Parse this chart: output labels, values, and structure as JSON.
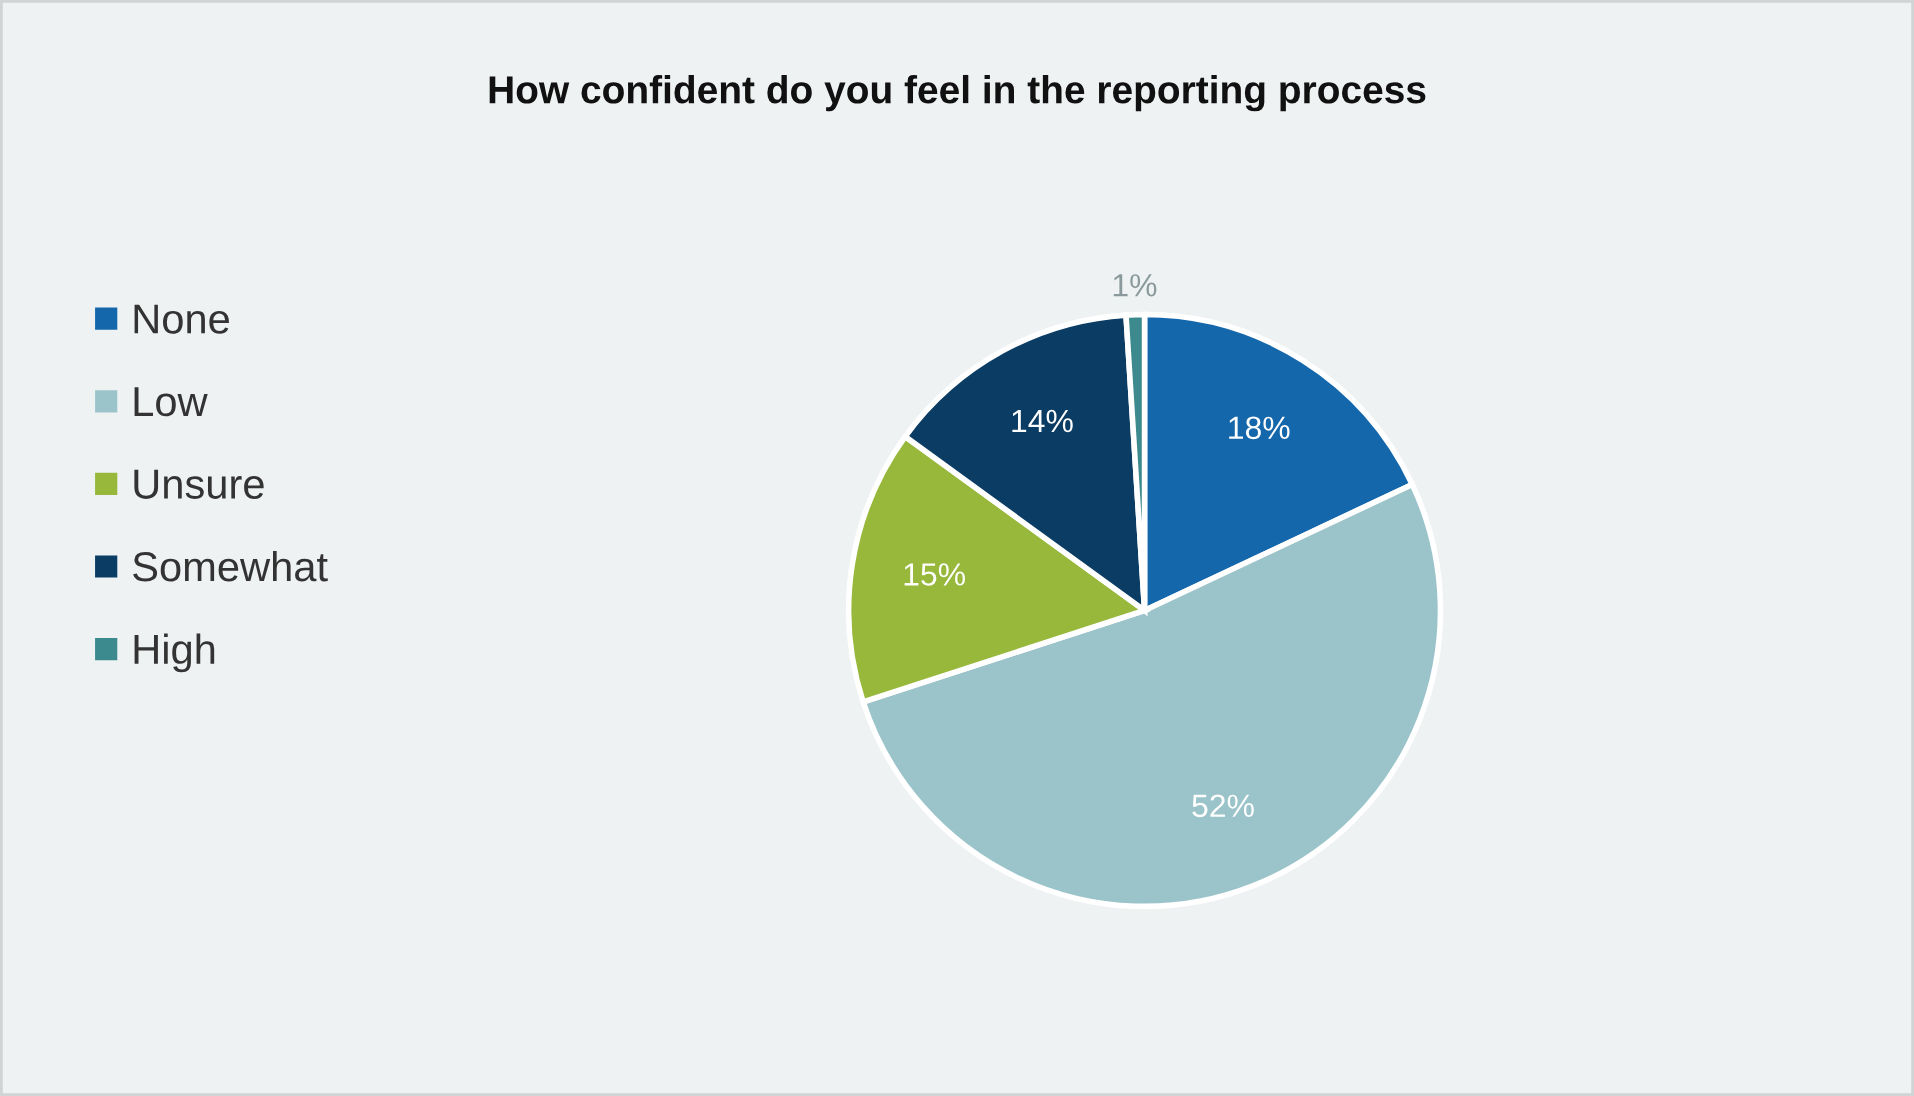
{
  "chart_data": {
    "type": "pie",
    "title": "How confident do you feel in the reporting process",
    "categories": [
      "None",
      "Low",
      "Unsure",
      "Somewhat",
      "High"
    ],
    "values": [
      18,
      52,
      15,
      14,
      1
    ],
    "colors": [
      "#1467ab",
      "#9bc4ca",
      "#97b83b",
      "#0b3c63",
      "#3d8a8e"
    ],
    "value_labels": [
      "18%",
      "52%",
      "15%",
      "14%",
      "1%"
    ],
    "legend": "left"
  }
}
